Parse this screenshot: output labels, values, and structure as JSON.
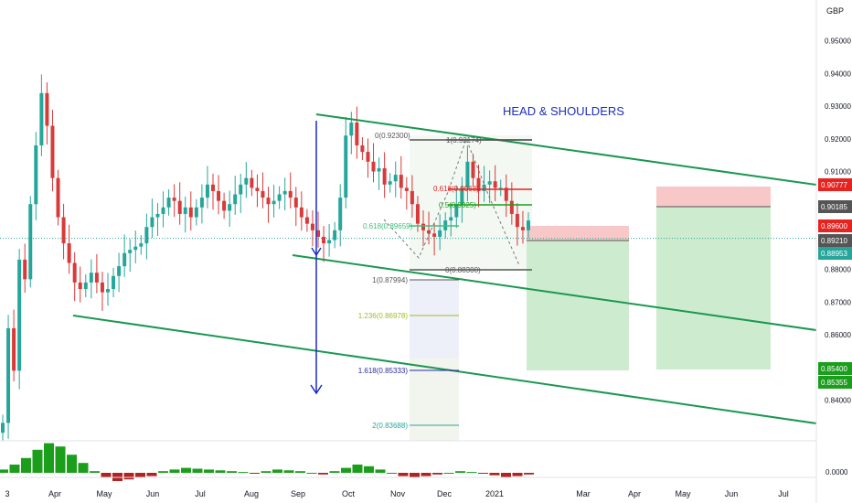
{
  "chart_data": {
    "type": "candlestick",
    "symbol_currency": "GBP",
    "title": "HEAD & SHOULDERS",
    "x_tick_labels": [
      "3",
      "Apr",
      "May",
      "Jun",
      "Jul",
      "Aug",
      "Sep",
      "Oct",
      "Nov",
      "Dec",
      "2021",
      "Mar",
      "Apr",
      "May",
      "Jun",
      "Jul"
    ],
    "y_tick_labels": [
      "0.95000",
      "0.94000",
      "0.93000",
      "0.92000",
      "0.91000",
      "0.88000",
      "0.87000",
      "0.86000",
      "0.84000"
    ],
    "ylim": [
      0.832,
      0.953
    ],
    "indicator_zero_label": "0.0000",
    "series": [
      {
        "name": "",
        "close": [
          0.833,
          0.862,
          0.849,
          0.883,
          0.877,
          0.9,
          0.918,
          0.934,
          0.924,
          0.908,
          0.896,
          0.888,
          0.882,
          0.876,
          0.874,
          0.876,
          0.879,
          0.876,
          0.873,
          0.874,
          0.878,
          0.881,
          0.885,
          0.886,
          0.887,
          0.888,
          0.893,
          0.896,
          0.897,
          0.899,
          0.902,
          0.901,
          0.897,
          0.899,
          0.896,
          0.899,
          0.902,
          0.906,
          0.904,
          0.901,
          0.898,
          0.9,
          0.903,
          0.906,
          0.908,
          0.905,
          0.904,
          0.902,
          0.9,
          0.901,
          0.903,
          0.904,
          0.902,
          0.899,
          0.896,
          0.894,
          0.892,
          0.89,
          0.888,
          0.889,
          0.892,
          0.902,
          0.921,
          0.925,
          0.918,
          0.916,
          0.913,
          0.91,
          0.911,
          0.906,
          0.907,
          0.909,
          0.905,
          0.904,
          0.9,
          0.894,
          0.892,
          0.891,
          0.89,
          0.892,
          0.895,
          0.896,
          0.9,
          0.905,
          0.913,
          0.908,
          0.904,
          0.906,
          0.907,
          0.905,
          0.905,
          0.901,
          0.897,
          0.893,
          0.892,
          0.895
        ]
      }
    ],
    "horizontal_levels": [
      {
        "label": "0.90777",
        "value": 0.90777,
        "color": "#e8221f"
      },
      {
        "label": "0.90185",
        "value": 0.90185,
        "color": "#555555"
      },
      {
        "label": "0.89600",
        "value": 0.896,
        "color": "#e8221f"
      },
      {
        "label": "0.89210",
        "value": 0.8921,
        "color": "#555555"
      },
      {
        "label": "0.88953",
        "value": 0.88953,
        "color": "#26a69a"
      },
      {
        "label": "0.85400",
        "value": 0.854,
        "color": "#1b9e1b"
      },
      {
        "label": "0.85355",
        "value": 0.85355,
        "color": "#1b9e1b"
      }
    ],
    "fib_retracement": [
      {
        "label": "0(0.92300)",
        "value": 0.923
      },
      {
        "label": "0.618(0.89659)",
        "value": 0.89659
      },
      {
        "label": "1(0.92174)",
        "value": 0.92174
      },
      {
        "label": "0.618(0.9068)",
        "value": 0.9068
      },
      {
        "label": "0.5(0.9025)",
        "value": 0.9025
      },
      {
        "label": "0(0.88300)",
        "value": 0.883
      }
    ],
    "fib_extension": [
      {
        "label": "1(0.87994)",
        "value": 0.87994
      },
      {
        "label": "1.236(0.86978)",
        "value": 0.86978
      },
      {
        "label": "1.618(0.85333)",
        "value": 0.85333
      },
      {
        "label": "2(0.83688)",
        "value": 0.83688
      }
    ],
    "channel_color": "#1a9850",
    "arrow_color": "#1c2fc2",
    "indicator": {
      "type": "histogram",
      "values": [
        0.2,
        0.5,
        0.9,
        1.4,
        1.8,
        1.6,
        1.1,
        0.6,
        0.1,
        -0.3,
        -0.5,
        -0.4,
        -0.3,
        -0.2,
        0.1,
        0.2,
        0.3,
        0.25,
        0.2,
        0.15,
        0.1,
        0.05,
        -0.05,
        0.1,
        0.2,
        0.15,
        0.1,
        0.0,
        -0.1,
        0.1,
        0.3,
        0.5,
        0.4,
        0.2,
        0.0,
        -0.2,
        -0.3,
        -0.2,
        -0.1,
        0.0,
        0.1,
        0.05,
        -0.05,
        -0.15,
        -0.25,
        -0.2,
        -0.1
      ]
    }
  }
}
